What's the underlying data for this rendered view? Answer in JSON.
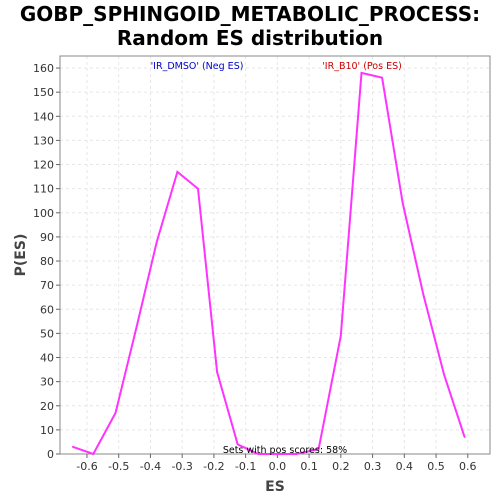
{
  "chart_data": {
    "type": "line",
    "title_line1": "GOBP_SPHINGOID_METABOLIC_PROCESS:",
    "title_line2": "Random ES distribution",
    "xlabel": "ES",
    "ylabel": "P(ES)",
    "xlim": [
      -0.685,
      0.67
    ],
    "ylim": [
      0,
      165
    ],
    "xticks": [
      -0.6,
      -0.5,
      -0.4,
      -0.3,
      -0.2,
      -0.1,
      0.0,
      0.1,
      0.2,
      0.3,
      0.4,
      0.5,
      0.6
    ],
    "xtick_labels": [
      "-0.6",
      "-0.5",
      "-0.4",
      "-0.3",
      "-0.2",
      "-0.1",
      "0.0",
      "0.1",
      "0.2",
      "0.3",
      "0.4",
      "0.5",
      "0.6"
    ],
    "yticks": [
      0,
      10,
      20,
      30,
      40,
      50,
      60,
      70,
      80,
      90,
      100,
      110,
      120,
      130,
      140,
      150,
      160
    ],
    "ytick_labels": [
      "0",
      "10",
      "20",
      "30",
      "40",
      "50",
      "60",
      "70",
      "80",
      "90",
      "100",
      "110",
      "120",
      "130",
      "140",
      "150",
      "160"
    ],
    "grid": true,
    "series": [
      {
        "color": "#ff33ff",
        "x": [
          -0.645,
          -0.58,
          -0.51,
          -0.445,
          -0.38,
          -0.315,
          -0.25,
          -0.19,
          -0.125,
          -0.06,
          0.0,
          0.06,
          0.13,
          0.2,
          0.265,
          0.33,
          0.395,
          0.46,
          0.525,
          0.59
        ],
        "y": [
          3,
          0,
          17,
          52,
          88,
          117,
          110,
          34,
          4,
          0,
          0,
          0,
          2,
          49,
          158,
          156,
          104,
          66,
          33,
          7
        ]
      }
    ],
    "annotations": [
      {
        "text": "'IR_DMSO' (Neg ES)",
        "color": "#0000cc"
      },
      {
        "text": "'IR_B10' (Pos ES)",
        "color": "#cc0000"
      },
      {
        "text": "Sets with pos scores: 58%",
        "color": "#000000"
      }
    ]
  }
}
